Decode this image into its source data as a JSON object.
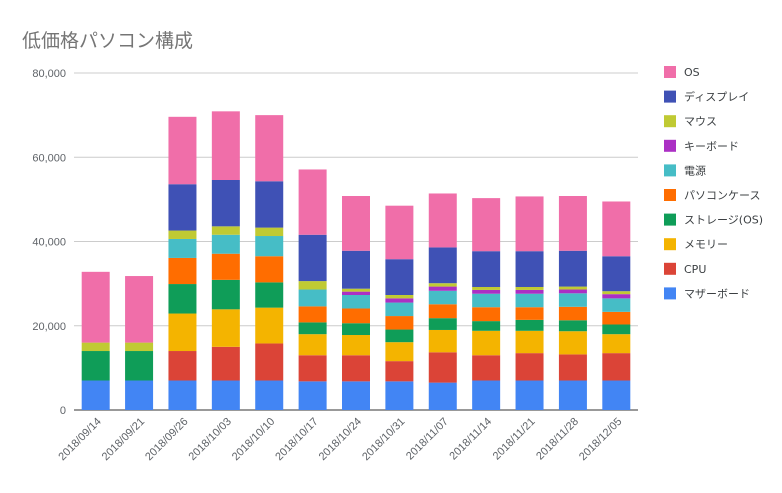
{
  "chart_data": {
    "type": "bar",
    "stacked": true,
    "title": "低価格パソコン構成",
    "xlabel": "",
    "ylabel": "",
    "ylim": [
      0,
      80000
    ],
    "yticks": [
      "0",
      "20,000",
      "40,000",
      "60,000",
      "80,000"
    ],
    "grid": true,
    "legend_position": "right",
    "categories": [
      "2018/09/14",
      "2018/09/21",
      "2018/09/26",
      "2018/10/03",
      "2018/10/10",
      "2018/10/17",
      "2018/10/24",
      "2018/10/31",
      "2018/11/07",
      "2018/11/14",
      "2018/11/21",
      "2018/11/28",
      "2018/12/05"
    ],
    "series": [
      {
        "name": "マザーボード",
        "color": "#4285f4",
        "values": [
          7000,
          7000,
          7000,
          7000,
          7000,
          6800,
          6800,
          6800,
          6500,
          7000,
          7000,
          7000,
          7000
        ]
      },
      {
        "name": "CPU",
        "color": "#db4437",
        "values": [
          0,
          0,
          7000,
          8000,
          8800,
          6200,
          6200,
          4800,
          7200,
          6000,
          6500,
          6200,
          6500
        ]
      },
      {
        "name": "メモリー",
        "color": "#f4b400",
        "values": [
          0,
          0,
          8900,
          8900,
          8500,
          5000,
          4800,
          4500,
          5300,
          5800,
          5300,
          5500,
          4500
        ]
      },
      {
        "name": "ストレージ(OS)",
        "color": "#0f9d58",
        "values": [
          7000,
          7000,
          7000,
          7000,
          6000,
          2800,
          2800,
          3000,
          2800,
          2300,
          2600,
          2600,
          2300
        ]
      },
      {
        "name": "パソコンケース",
        "color": "#ff6d00",
        "values": [
          0,
          0,
          6200,
          6200,
          6200,
          3800,
          3500,
          3200,
          3300,
          3300,
          3000,
          3200,
          3000
        ]
      },
      {
        "name": "電源",
        "color": "#46bdc6",
        "values": [
          0,
          0,
          4500,
          4500,
          4800,
          4000,
          3200,
          3200,
          3200,
          3200,
          3200,
          3200,
          3200
        ]
      },
      {
        "name": "キーボード",
        "color": "#ab30c4",
        "values": [
          0,
          0,
          0,
          0,
          0,
          0,
          800,
          1000,
          1000,
          900,
          900,
          900,
          1000
        ]
      },
      {
        "name": "マウス",
        "color": "#c0ca33",
        "values": [
          2000,
          2000,
          2000,
          2000,
          2000,
          2000,
          700,
          800,
          800,
          700,
          700,
          700,
          700
        ]
      },
      {
        "name": "ディスプレイ",
        "color": "#3f51b5",
        "values": [
          0,
          0,
          11000,
          11000,
          11000,
          11000,
          9000,
          8500,
          8500,
          8500,
          8500,
          8500,
          8300
        ]
      },
      {
        "name": "OS",
        "color": "#f06ea9",
        "values": [
          16800,
          15800,
          16000,
          16300,
          15700,
          15500,
          13000,
          12700,
          12800,
          12600,
          13000,
          13000,
          13000
        ]
      }
    ],
    "legend_order": [
      "OS",
      "ディスプレイ",
      "マウス",
      "キーボード",
      "電源",
      "パソコンケース",
      "ストレージ(OS)",
      "メモリー",
      "CPU",
      "マザーボード"
    ]
  }
}
